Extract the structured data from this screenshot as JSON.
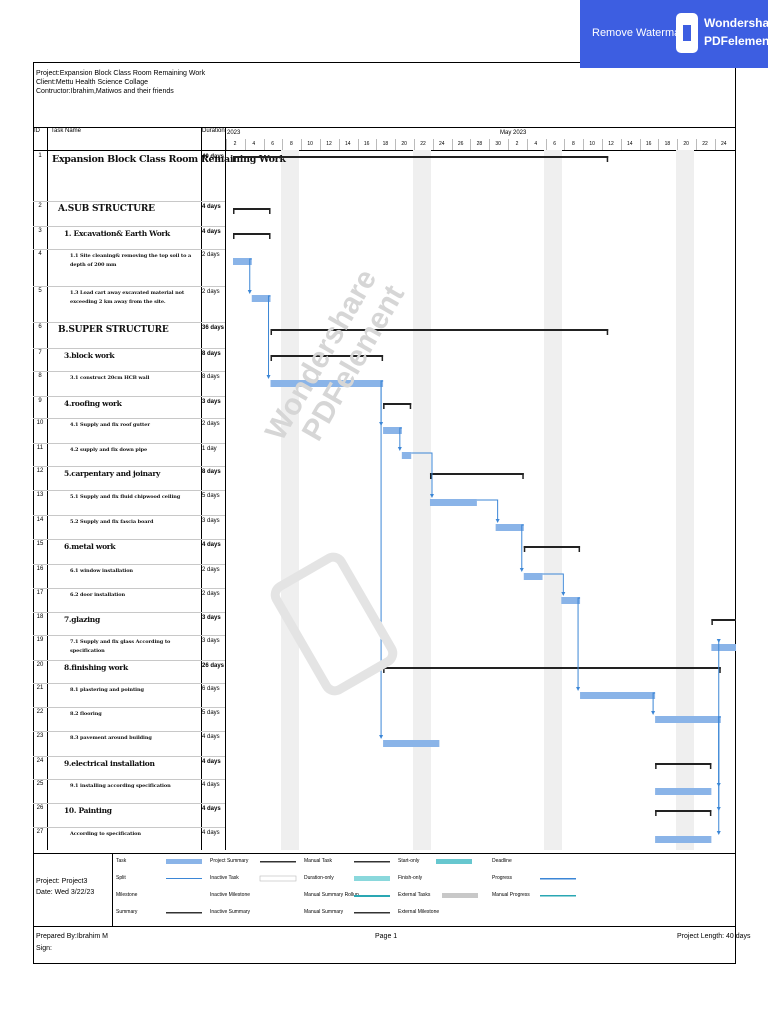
{
  "header": {
    "project": "Project:Expansion Block Class Room Remaining Work",
    "client": "Client:Mettu Health Science Collage",
    "contractor": "Contructor:Ibrahim,Matiwos and their friends"
  },
  "columns": {
    "id": "ID",
    "task_name": "Task Name",
    "duration": "Duration"
  },
  "timescale": {
    "start_label": "2023",
    "month_label": "May 2023",
    "ticks": [
      "2",
      "4",
      "6",
      "8",
      "10",
      "12",
      "14",
      "16",
      "18",
      "20",
      "22",
      "24",
      "26",
      "28",
      "30",
      "2",
      "4",
      "6",
      "8",
      "10",
      "12",
      "14",
      "16",
      "18",
      "20",
      "22",
      "24"
    ]
  },
  "tasks": [
    {
      "id": "1",
      "name": "Expansion Block Class Room Remaining Work",
      "duration": "40 days",
      "level": "h1",
      "start": 0,
      "length": 40,
      "kind": "summary"
    },
    {
      "id": "2",
      "name": "A.SUB STRUCTURE",
      "duration": "4 days",
      "level": "h2",
      "start": 0,
      "length": 4,
      "kind": "summary"
    },
    {
      "id": "3",
      "name": "1. Excavation& Earth Work",
      "duration": "4 days",
      "level": "h3",
      "start": 0,
      "length": 4,
      "kind": "summary"
    },
    {
      "id": "4",
      "name": "1.1 Site cleaning& removing the top soil to a depth of 200 mm",
      "duration": "2 days",
      "level": "sub",
      "start": 0,
      "length": 2,
      "kind": "task"
    },
    {
      "id": "5",
      "name": "1.3 Load cart away excavated material not exceeding 2 km away from the site.",
      "duration": "2 days",
      "level": "sub",
      "start": 2,
      "length": 2,
      "kind": "task"
    },
    {
      "id": "6",
      "name": "B.SUPER STRUCTURE",
      "duration": "36 days",
      "level": "h2",
      "start": 4,
      "length": 36,
      "kind": "summary"
    },
    {
      "id": "7",
      "name": "3.block work",
      "duration": "8 days",
      "level": "h3",
      "start": 4,
      "length": 12,
      "kind": "summary"
    },
    {
      "id": "8",
      "name": "3.1 construct 20cm HCB wall",
      "duration": "8 days",
      "level": "sub",
      "start": 4,
      "length": 12,
      "kind": "task"
    },
    {
      "id": "9",
      "name": "4.roofing work",
      "duration": "3 days",
      "level": "h3",
      "start": 16,
      "length": 3,
      "kind": "summary"
    },
    {
      "id": "10",
      "name": "4.1 Supply and fix roof gutter",
      "duration": "2 days",
      "level": "sub",
      "start": 16,
      "length": 2,
      "kind": "task"
    },
    {
      "id": "11",
      "name": "4.2 supply and fix down pipe",
      "duration": "1 day",
      "level": "sub",
      "start": 18,
      "length": 1,
      "kind": "task"
    },
    {
      "id": "12",
      "name": "5.carpentary and joinary",
      "duration": "8 days",
      "level": "h3",
      "start": 21,
      "length": 10,
      "kind": "summary"
    },
    {
      "id": "13",
      "name": "5.1 Supply and fix fluid chipwood ceiling",
      "duration": "5 days",
      "level": "sub",
      "start": 21,
      "length": 5,
      "kind": "task"
    },
    {
      "id": "14",
      "name": "5.2 Supply and fix fascia board",
      "duration": "3 days",
      "level": "sub",
      "start": 28,
      "length": 3,
      "kind": "task"
    },
    {
      "id": "15",
      "name": "6.metal work",
      "duration": "4 days",
      "level": "h3",
      "start": 31,
      "length": 6,
      "kind": "summary"
    },
    {
      "id": "16",
      "name": "6.1 window installation",
      "duration": "2 days",
      "level": "sub",
      "start": 31,
      "length": 2,
      "kind": "task"
    },
    {
      "id": "17",
      "name": "6.2 door installation",
      "duration": "2 days",
      "level": "sub",
      "start": 35,
      "length": 2,
      "kind": "task"
    },
    {
      "id": "18",
      "name": "7.glazing",
      "duration": "3 days",
      "level": "h3",
      "start": 51,
      "length": 3,
      "kind": "summary"
    },
    {
      "id": "19",
      "name": "7.1 Supply and fix glass According to specification",
      "duration": "3 days",
      "level": "sub",
      "start": 51,
      "length": 3,
      "kind": "task"
    },
    {
      "id": "20",
      "name": "8.finishing work",
      "duration": "26 days",
      "level": "h3",
      "start": 16,
      "length": 36,
      "kind": "summary"
    },
    {
      "id": "21",
      "name": "8.1 plastering and pointing",
      "duration": "6 days",
      "level": "sub",
      "start": 37,
      "length": 8,
      "kind": "task"
    },
    {
      "id": "22",
      "name": "8.2 flooring",
      "duration": "5 days",
      "level": "sub",
      "start": 45,
      "length": 7,
      "kind": "task"
    },
    {
      "id": "23",
      "name": "8.3 pavement around building",
      "duration": "4 days",
      "level": "sub",
      "start": 16,
      "length": 6,
      "kind": "task"
    },
    {
      "id": "24",
      "name": "9.electrical installation",
      "duration": "4 days",
      "level": "h3",
      "start": 45,
      "length": 6,
      "kind": "summary"
    },
    {
      "id": "25",
      "name": "9.1 installing according specification",
      "duration": "4 days",
      "level": "sub",
      "start": 45,
      "length": 6,
      "kind": "task"
    },
    {
      "id": "26",
      "name": "10. Painting",
      "duration": "4 days",
      "level": "h3",
      "start": 45,
      "length": 6,
      "kind": "summary"
    },
    {
      "id": "27",
      "name": "According to specification",
      "duration": "4 days",
      "level": "sub",
      "start": 45,
      "length": 6,
      "kind": "task"
    }
  ],
  "legend": {
    "project_info": [
      "Project: Project3",
      "Date: Wed 3/22/23"
    ],
    "items": [
      [
        "Task",
        "Project Summary",
        "Manual Task",
        "Start-only",
        "Deadline"
      ],
      [
        "Split",
        "Inactive Task",
        "Duration-only",
        "Finish-only",
        "Progress"
      ],
      [
        "Milestone",
        "Inactive Milestone",
        "Manual Summary Rollup",
        "External Tasks",
        "Manual Progress"
      ],
      [
        "Summary",
        "Inactive Summary",
        "Manual Summary",
        "External Milestone",
        ""
      ]
    ]
  },
  "footer": {
    "prepared": "Prepared By:Ibrahim M",
    "sign": "Sign:",
    "page": "Page 1",
    "length": "Project Length: 40 days"
  },
  "watermark": {
    "remove": "Remove Watermark",
    "brand1": "Wondershare",
    "brand2": "PDFelement",
    "diag1": "Wondershare",
    "diag2": "PDFelement"
  },
  "colors": {
    "task_bar": "#8ab4e8",
    "summary_bar": "#222222",
    "link_arrow": "#3b86d6",
    "watermark_bg": "#3d5ee1"
  }
}
